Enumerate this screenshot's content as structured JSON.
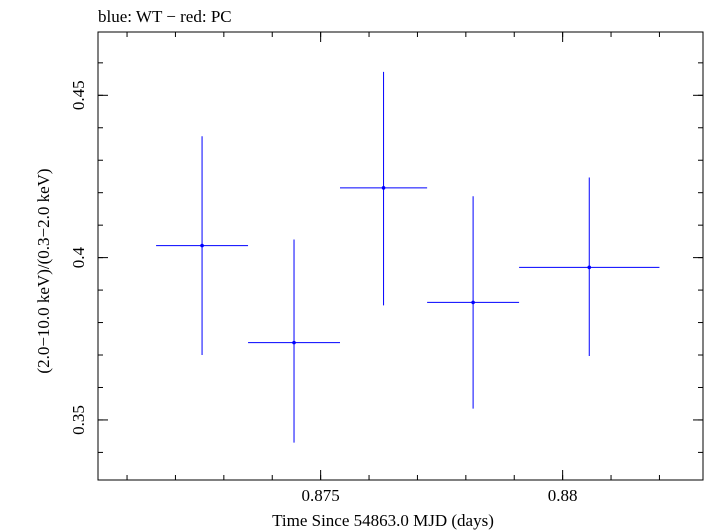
{
  "chart_data": {
    "type": "scatter",
    "title": "blue: WT − red: PC",
    "xlabel": "Time Since 54863.0 MJD (days)",
    "ylabel": "(2.0−10.0 keV)/(0.3−2.0 keV)",
    "xlim": [
      0.8704,
      0.8829
    ],
    "ylim": [
      0.3315,
      0.4695
    ],
    "x_ticks": [
      {
        "value": 0.875,
        "label": "0.875"
      },
      {
        "value": 0.88,
        "label": "0.88"
      }
    ],
    "y_ticks": [
      {
        "value": 0.35,
        "label": "0.35"
      },
      {
        "value": 0.4,
        "label": "0.4"
      },
      {
        "value": 0.45,
        "label": "0.45"
      }
    ],
    "grid": false,
    "series": [
      {
        "name": "WT",
        "color": "#0000ff",
        "points": [
          {
            "x": 0.87255,
            "y": 0.4037,
            "xerr": [
              0.00095,
              0.00095
            ],
            "yerr": [
              0.0337,
              0.0337
            ]
          },
          {
            "x": 0.87445,
            "y": 0.3738,
            "xerr": [
              0.00095,
              0.00095
            ],
            "yerr": [
              0.0308,
              0.0318
            ]
          },
          {
            "x": 0.8763,
            "y": 0.4215,
            "xerr": [
              0.0009,
              0.0009
            ],
            "yerr": [
              0.0362,
              0.0357
            ]
          },
          {
            "x": 0.87815,
            "y": 0.3862,
            "xerr": [
              0.00095,
              0.00095
            ],
            "yerr": [
              0.0327,
              0.0327
            ]
          },
          {
            "x": 0.88055,
            "y": 0.397,
            "xerr": [
              0.00145,
              0.00145
            ],
            "yerr": [
              0.0273,
              0.0277
            ]
          }
        ]
      }
    ]
  }
}
